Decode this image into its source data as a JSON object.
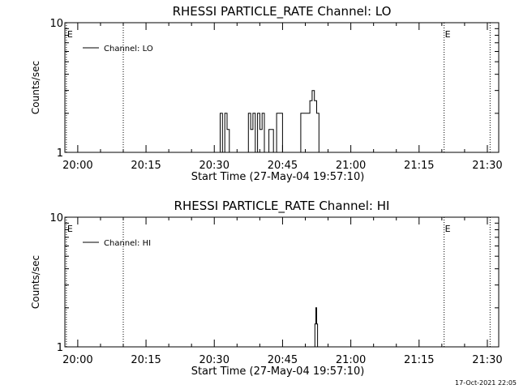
{
  "chart_data": [
    {
      "type": "line",
      "title": "RHESSI PARTICLE_RATE Channel: LO",
      "xlabel": "Start Time (27-May-04 19:57:10)",
      "ylabel": "Counts/sec",
      "y_scale": "log",
      "ylim": [
        1,
        10
      ],
      "y_ticks": [
        "1",
        "10"
      ],
      "x_ticks": [
        "20:00",
        "20:15",
        "20:30",
        "20:45",
        "21:00",
        "21:15",
        "21:30"
      ],
      "x_tick_minutes": [
        0,
        15,
        30,
        45,
        60,
        75,
        90
      ],
      "xlim_minutes": [
        -2.83,
        92.5
      ],
      "legend": {
        "label": "Channel: LO",
        "placement": "top-left"
      },
      "event_markers": [
        {
          "label": "E",
          "minute": -2.5
        },
        {
          "label": "",
          "minute": 10.0
        },
        {
          "label": "E",
          "minute": 80.5
        },
        {
          "label": "",
          "minute": 90.6
        }
      ],
      "series": [
        {
          "points": [
            [
              31.3,
              1
            ],
            [
              31.3,
              2
            ],
            [
              31.8,
              2
            ],
            [
              31.8,
              1
            ],
            [
              32.3,
              1
            ],
            [
              32.3,
              2
            ],
            [
              32.8,
              2
            ],
            [
              32.8,
              1.5
            ],
            [
              33.3,
              1.5
            ],
            [
              33.3,
              1
            ],
            [
              37.5,
              1
            ],
            [
              37.5,
              2
            ],
            [
              38.0,
              2
            ],
            [
              38.0,
              1.5
            ],
            [
              38.5,
              1.5
            ],
            [
              38.5,
              2
            ],
            [
              39.0,
              2
            ],
            [
              39.0,
              1
            ],
            [
              39.5,
              1
            ],
            [
              39.5,
              2
            ],
            [
              40.0,
              2
            ],
            [
              40.0,
              1.5
            ],
            [
              40.5,
              1.5
            ],
            [
              40.5,
              2
            ],
            [
              41.0,
              2
            ],
            [
              41.0,
              1
            ],
            [
              42.0,
              1
            ],
            [
              42.0,
              1.5
            ],
            [
              43.0,
              1.5
            ],
            [
              43.0,
              1
            ],
            [
              43.7,
              1
            ],
            [
              43.7,
              2
            ],
            [
              45.0,
              2
            ],
            [
              45.0,
              1
            ],
            [
              49.0,
              1
            ],
            [
              49.0,
              2
            ],
            [
              51.0,
              2
            ],
            [
              51.0,
              2.5
            ],
            [
              51.5,
              2.5
            ],
            [
              51.5,
              3
            ],
            [
              52.0,
              3
            ],
            [
              52.0,
              2.5
            ],
            [
              52.5,
              2.5
            ],
            [
              52.5,
              2
            ],
            [
              53.0,
              2
            ],
            [
              53.0,
              1
            ]
          ]
        }
      ]
    },
    {
      "type": "line",
      "title": "RHESSI PARTICLE_RATE Channel: HI",
      "xlabel": "Start Time (27-May-04 19:57:10)",
      "ylabel": "Counts/sec",
      "y_scale": "log",
      "ylim": [
        1,
        10
      ],
      "y_ticks": [
        "1",
        "10"
      ],
      "x_ticks": [
        "20:00",
        "20:15",
        "20:30",
        "20:45",
        "21:00",
        "21:15",
        "21:30"
      ],
      "x_tick_minutes": [
        0,
        15,
        30,
        45,
        60,
        75,
        90
      ],
      "xlim_minutes": [
        -2.83,
        92.5
      ],
      "legend": {
        "label": "Channel: HI",
        "placement": "top-left"
      },
      "event_markers": [
        {
          "label": "E",
          "minute": -2.5
        },
        {
          "label": "",
          "minute": 10.0
        },
        {
          "label": "E",
          "minute": 80.5
        },
        {
          "label": "",
          "minute": 90.6
        }
      ],
      "series": [
        {
          "points": [
            [
              52.1,
              1
            ],
            [
              52.1,
              1.5
            ],
            [
              52.3,
              1.5
            ],
            [
              52.3,
              2
            ],
            [
              52.5,
              2
            ],
            [
              52.5,
              1.5
            ],
            [
              52.7,
              1.5
            ],
            [
              52.7,
              1
            ]
          ]
        }
      ]
    }
  ],
  "footer": {
    "timestamp": "17-Oct-2021 22:05"
  }
}
